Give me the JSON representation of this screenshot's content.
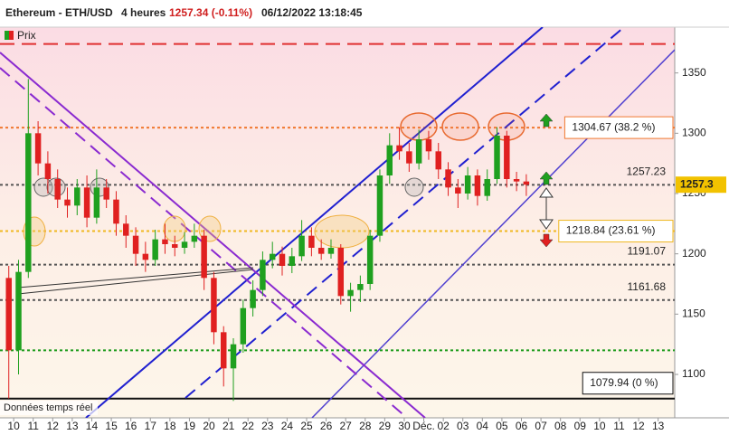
{
  "chart_data": {
    "type": "candlestick",
    "title": "Ethereum - ETH/USD",
    "interval": "4 heures",
    "price_text": "1257.34 (-0.11%)",
    "timestamp": "06/12/2022 13:18:45",
    "legend": "Prix",
    "footnote": "Données temps réel",
    "up_color": "#1fa01f",
    "down_color": "#e02020",
    "xlim": [
      -0.7,
      33.85
    ],
    "xticks": [
      {
        "value": 0,
        "label": "10"
      },
      {
        "value": 1,
        "label": "11"
      },
      {
        "value": 2,
        "label": "12"
      },
      {
        "value": 3,
        "label": "13"
      },
      {
        "value": 4,
        "label": "14"
      },
      {
        "value": 5,
        "label": "15"
      },
      {
        "value": 6,
        "label": "16"
      },
      {
        "value": 7,
        "label": "17"
      },
      {
        "value": 8,
        "label": "18"
      },
      {
        "value": 9,
        "label": "19"
      },
      {
        "value": 10,
        "label": "20"
      },
      {
        "value": 11,
        "label": "21"
      },
      {
        "value": 12,
        "label": "22"
      },
      {
        "value": 13,
        "label": "23"
      },
      {
        "value": 14,
        "label": "24"
      },
      {
        "value": 15,
        "label": "25"
      },
      {
        "value": 16,
        "label": "26"
      },
      {
        "value": 17,
        "label": "27"
      },
      {
        "value": 18,
        "label": "28"
      },
      {
        "value": 19,
        "label": "29"
      },
      {
        "value": 20,
        "label": "30"
      },
      {
        "value": 21,
        "label": "Déc."
      },
      {
        "value": 22,
        "label": "02"
      },
      {
        "value": 23,
        "label": "03"
      },
      {
        "value": 24,
        "label": "04"
      },
      {
        "value": 25,
        "label": "05"
      },
      {
        "value": 26,
        "label": "06"
      },
      {
        "value": 27,
        "label": "07"
      },
      {
        "value": 28,
        "label": "08"
      },
      {
        "value": 29,
        "label": "09"
      },
      {
        "value": 30,
        "label": "10"
      },
      {
        "value": 31,
        "label": "11"
      },
      {
        "value": 32,
        "label": "12"
      },
      {
        "value": 33,
        "label": "13"
      }
    ],
    "ylim": [
      1064,
      1388
    ],
    "yticks": [
      1100,
      1150,
      1200,
      1250,
      1300,
      1350
    ],
    "last": {
      "value": 1257.34,
      "label": "1257.3"
    },
    "levels": [
      {
        "value": 1374,
        "color": "#e03030",
        "style": "dashed"
      },
      {
        "value": 1304.67,
        "color": "#f07830",
        "style": "dotted",
        "label": "1304.67 (38.2 %)",
        "boxed": true
      },
      {
        "value": 1257.23,
        "color": "#555555",
        "style": "dotted",
        "label": "1257.23"
      },
      {
        "value": 1218.84,
        "color": "#f0b820",
        "style": "dotted",
        "label": "1218.84 (23.61 %)",
        "boxed": true
      },
      {
        "value": 1191.07,
        "color": "#555555",
        "style": "dotted",
        "label": "1191.07"
      },
      {
        "value": 1161.68,
        "color": "#555555",
        "style": "dotted",
        "label": "1161.68"
      },
      {
        "value": 1120,
        "color": "#1a9a1a",
        "style": "dotted"
      },
      {
        "value": 1079.94,
        "color": "#111111",
        "style": "solid",
        "label": "1079.94 (0 %)",
        "boxed": true
      }
    ],
    "candles": [
      {
        "x": -0.25,
        "o": 1180,
        "h": 1190,
        "l": 1080,
        "c": 1120
      },
      {
        "x": 0.25,
        "o": 1120,
        "h": 1195,
        "l": 1100,
        "c": 1185
      },
      {
        "x": 0.75,
        "o": 1185,
        "h": 1345,
        "l": 1180,
        "c": 1300
      },
      {
        "x": 1.25,
        "o": 1300,
        "h": 1310,
        "l": 1265,
        "c": 1275
      },
      {
        "x": 1.75,
        "o": 1275,
        "h": 1285,
        "l": 1250,
        "c": 1262
      },
      {
        "x": 2.25,
        "o": 1262,
        "h": 1270,
        "l": 1238,
        "c": 1245
      },
      {
        "x": 2.75,
        "o": 1245,
        "h": 1255,
        "l": 1230,
        "c": 1240
      },
      {
        "x": 3.25,
        "o": 1240,
        "h": 1262,
        "l": 1232,
        "c": 1255
      },
      {
        "x": 3.75,
        "o": 1255,
        "h": 1265,
        "l": 1222,
        "c": 1230
      },
      {
        "x": 4.25,
        "o": 1230,
        "h": 1270,
        "l": 1225,
        "c": 1255
      },
      {
        "x": 4.75,
        "o": 1255,
        "h": 1262,
        "l": 1238,
        "c": 1245
      },
      {
        "x": 5.25,
        "o": 1245,
        "h": 1252,
        "l": 1215,
        "c": 1225
      },
      {
        "x": 5.75,
        "o": 1225,
        "h": 1232,
        "l": 1205,
        "c": 1215
      },
      {
        "x": 6.25,
        "o": 1215,
        "h": 1222,
        "l": 1190,
        "c": 1200
      },
      {
        "x": 6.75,
        "o": 1200,
        "h": 1210,
        "l": 1185,
        "c": 1195
      },
      {
        "x": 7.25,
        "o": 1195,
        "h": 1220,
        "l": 1190,
        "c": 1212
      },
      {
        "x": 7.75,
        "o": 1212,
        "h": 1225,
        "l": 1200,
        "c": 1208
      },
      {
        "x": 8.25,
        "o": 1208,
        "h": 1215,
        "l": 1198,
        "c": 1205
      },
      {
        "x": 8.75,
        "o": 1205,
        "h": 1218,
        "l": 1200,
        "c": 1210
      },
      {
        "x": 9.25,
        "o": 1210,
        "h": 1225,
        "l": 1205,
        "c": 1215
      },
      {
        "x": 9.75,
        "o": 1215,
        "h": 1220,
        "l": 1170,
        "c": 1180
      },
      {
        "x": 10.25,
        "o": 1180,
        "h": 1185,
        "l": 1125,
        "c": 1135
      },
      {
        "x": 10.75,
        "o": 1135,
        "h": 1140,
        "l": 1090,
        "c": 1105
      },
      {
        "x": 11.25,
        "o": 1105,
        "h": 1130,
        "l": 1078,
        "c": 1125
      },
      {
        "x": 11.75,
        "o": 1125,
        "h": 1162,
        "l": 1118,
        "c": 1155
      },
      {
        "x": 12.25,
        "o": 1155,
        "h": 1178,
        "l": 1148,
        "c": 1170
      },
      {
        "x": 12.75,
        "o": 1170,
        "h": 1202,
        "l": 1165,
        "c": 1195
      },
      {
        "x": 13.25,
        "o": 1195,
        "h": 1210,
        "l": 1188,
        "c": 1200
      },
      {
        "x": 13.75,
        "o": 1200,
        "h": 1206,
        "l": 1182,
        "c": 1190
      },
      {
        "x": 14.25,
        "o": 1190,
        "h": 1205,
        "l": 1184,
        "c": 1198
      },
      {
        "x": 14.75,
        "o": 1198,
        "h": 1228,
        "l": 1194,
        "c": 1215
      },
      {
        "x": 15.25,
        "o": 1215,
        "h": 1222,
        "l": 1198,
        "c": 1205
      },
      {
        "x": 15.75,
        "o": 1205,
        "h": 1212,
        "l": 1195,
        "c": 1200
      },
      {
        "x": 16.25,
        "o": 1200,
        "h": 1212,
        "l": 1196,
        "c": 1205
      },
      {
        "x": 16.75,
        "o": 1205,
        "h": 1208,
        "l": 1158,
        "c": 1165
      },
      {
        "x": 17.25,
        "o": 1165,
        "h": 1176,
        "l": 1152,
        "c": 1170
      },
      {
        "x": 17.75,
        "o": 1170,
        "h": 1182,
        "l": 1160,
        "c": 1175
      },
      {
        "x": 18.25,
        "o": 1175,
        "h": 1220,
        "l": 1170,
        "c": 1215
      },
      {
        "x": 18.75,
        "o": 1215,
        "h": 1270,
        "l": 1210,
        "c": 1265
      },
      {
        "x": 19.25,
        "o": 1265,
        "h": 1300,
        "l": 1258,
        "c": 1290
      },
      {
        "x": 19.75,
        "o": 1290,
        "h": 1305,
        "l": 1278,
        "c": 1285
      },
      {
        "x": 20.25,
        "o": 1285,
        "h": 1292,
        "l": 1268,
        "c": 1275
      },
      {
        "x": 20.75,
        "o": 1275,
        "h": 1303,
        "l": 1270,
        "c": 1295
      },
      {
        "x": 21.25,
        "o": 1295,
        "h": 1302,
        "l": 1278,
        "c": 1285
      },
      {
        "x": 21.75,
        "o": 1285,
        "h": 1292,
        "l": 1262,
        "c": 1270
      },
      {
        "x": 22.25,
        "o": 1270,
        "h": 1276,
        "l": 1248,
        "c": 1255
      },
      {
        "x": 22.75,
        "o": 1255,
        "h": 1262,
        "l": 1238,
        "c": 1250
      },
      {
        "x": 23.25,
        "o": 1250,
        "h": 1272,
        "l": 1245,
        "c": 1265
      },
      {
        "x": 23.75,
        "o": 1265,
        "h": 1270,
        "l": 1240,
        "c": 1248
      },
      {
        "x": 24.25,
        "o": 1248,
        "h": 1270,
        "l": 1244,
        "c": 1262
      },
      {
        "x": 24.75,
        "o": 1262,
        "h": 1305,
        "l": 1258,
        "c": 1298
      },
      {
        "x": 25.25,
        "o": 1298,
        "h": 1302,
        "l": 1255,
        "c": 1262
      },
      {
        "x": 25.75,
        "o": 1262,
        "h": 1268,
        "l": 1252,
        "c": 1260
      },
      {
        "x": 26.25,
        "o": 1260,
        "h": 1266,
        "l": 1248,
        "c": 1257.34
      }
    ]
  }
}
